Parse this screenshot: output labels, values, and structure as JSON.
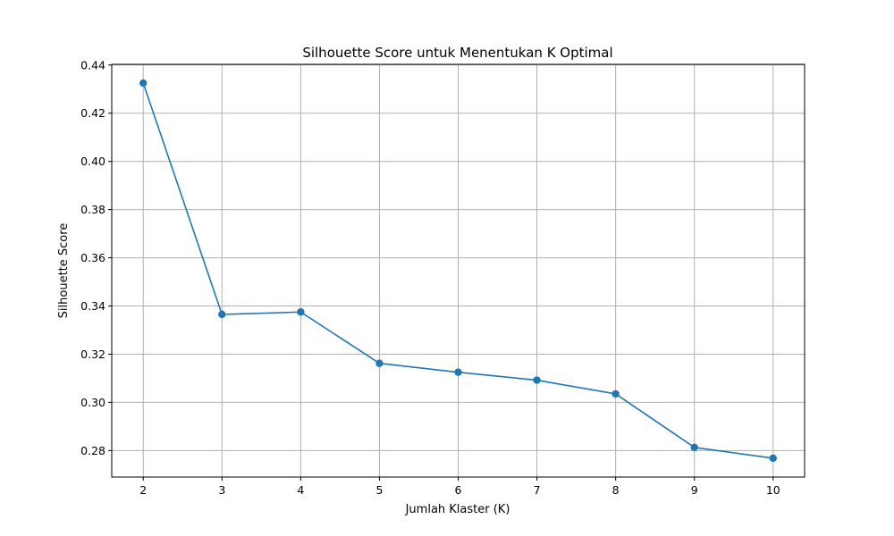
{
  "chart_data": {
    "type": "line",
    "title": "Silhouette Score untuk Menentukan K Optimal",
    "xlabel": "Jumlah Klaster (K)",
    "ylabel": "Silhouette Score",
    "x": [
      2,
      3,
      4,
      5,
      6,
      7,
      8,
      9,
      10
    ],
    "series": [
      {
        "values": [
          0.4325,
          0.3365,
          0.3375,
          0.3162,
          0.3125,
          0.3092,
          0.3035,
          0.2813,
          0.2768
        ]
      }
    ],
    "xlim": [
      1.6,
      10.4
    ],
    "ylim": [
      0.269,
      0.4403
    ],
    "xticks": [
      2,
      3,
      4,
      5,
      6,
      7,
      8,
      9,
      10
    ],
    "yticks": [
      "0.28",
      "0.30",
      "0.32",
      "0.34",
      "0.36",
      "0.38",
      "0.40",
      "0.42",
      "0.44"
    ],
    "grid": true,
    "marker": "circle",
    "line_color": "#1f77b4"
  }
}
